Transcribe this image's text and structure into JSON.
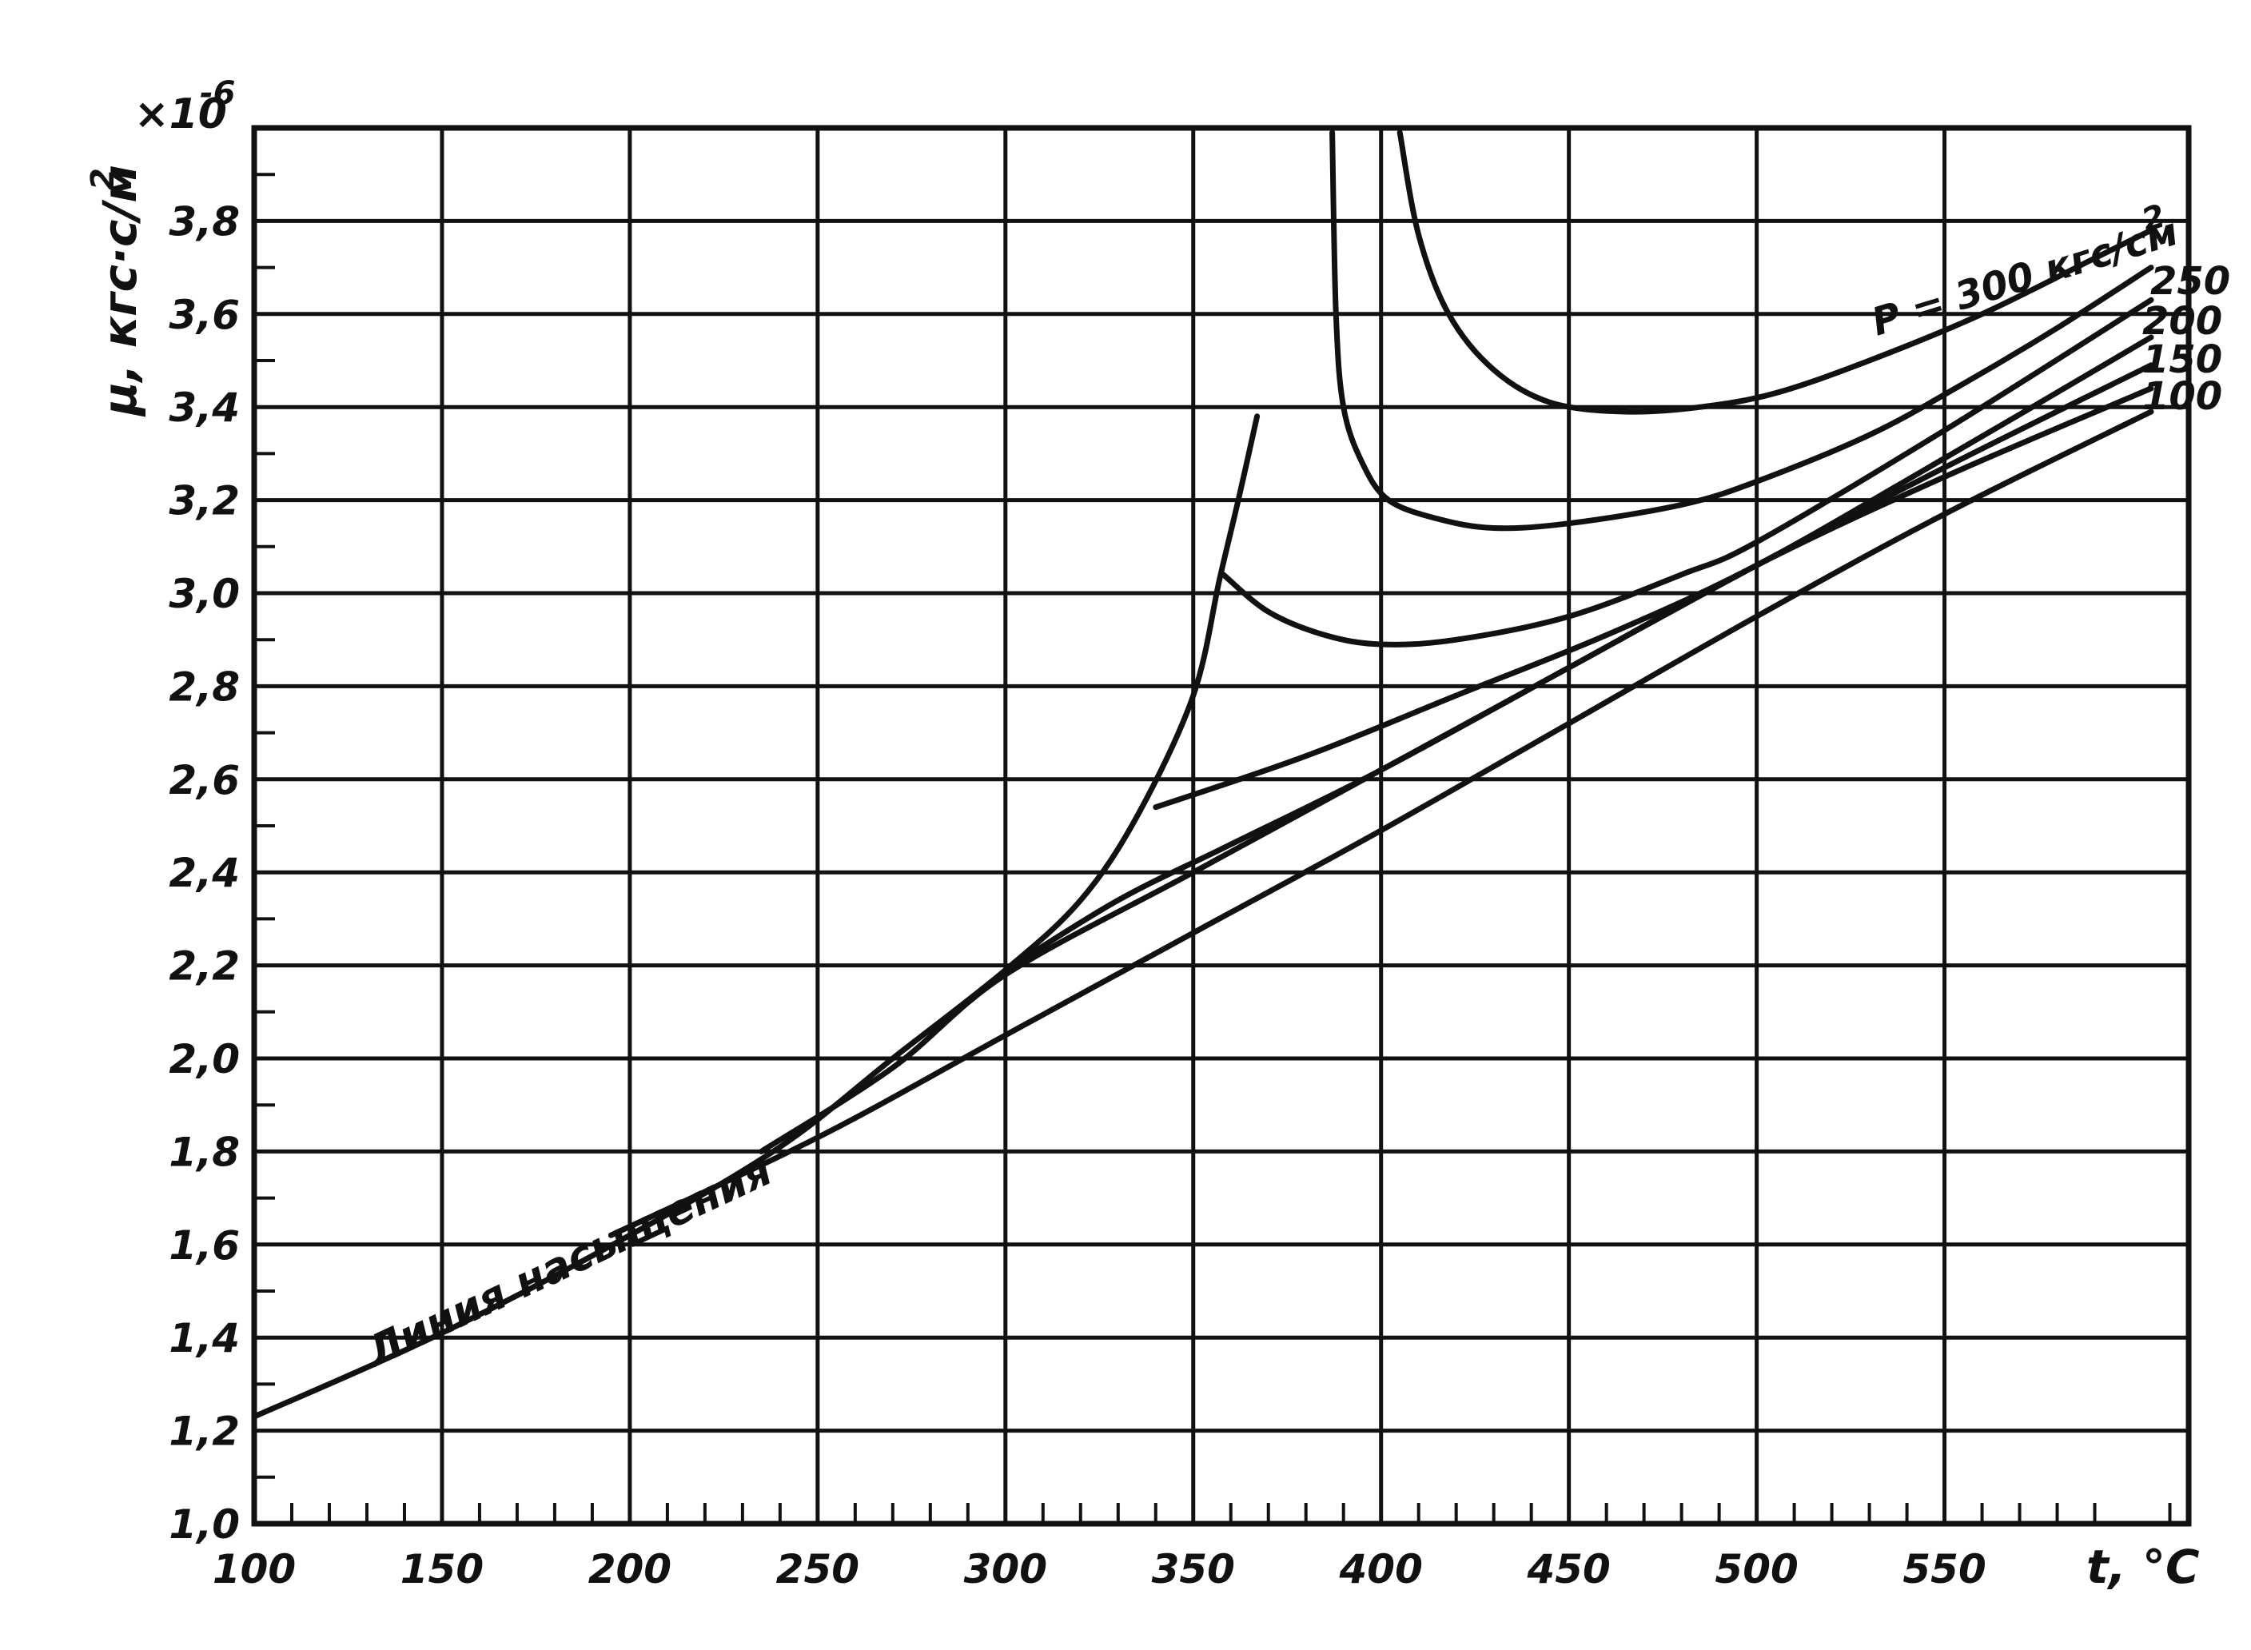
{
  "chart_data": {
    "type": "line",
    "y_multiplier_label": "×10",
    "y_multiplier_exponent": "-6",
    "ylabel": "μ, кгс·с/м",
    "ylabel_sup": "2",
    "xlabel": "t, °C",
    "xlim": [
      100,
      615
    ],
    "ylim": [
      1.0,
      4.0
    ],
    "x_ticks": [
      {
        "value": 100,
        "label": "100"
      },
      {
        "value": 150,
        "label": "150"
      },
      {
        "value": 200,
        "label": "200"
      },
      {
        "value": 250,
        "label": "250"
      },
      {
        "value": 300,
        "label": "300"
      },
      {
        "value": 350,
        "label": "350"
      },
      {
        "value": 400,
        "label": "400"
      },
      {
        "value": 450,
        "label": "450"
      },
      {
        "value": 500,
        "label": "500"
      },
      {
        "value": 550,
        "label": "550"
      }
    ],
    "y_ticks": [
      {
        "value": 1.0,
        "label": "1,0"
      },
      {
        "value": 1.2,
        "label": "1,2"
      },
      {
        "value": 1.4,
        "label": "1,4"
      },
      {
        "value": 1.6,
        "label": "1,6"
      },
      {
        "value": 1.8,
        "label": "1,8"
      },
      {
        "value": 2.0,
        "label": "2,0"
      },
      {
        "value": 2.2,
        "label": "2,2"
      },
      {
        "value": 2.4,
        "label": "2,4"
      },
      {
        "value": 2.6,
        "label": "2,6"
      },
      {
        "value": 2.8,
        "label": "2,8"
      },
      {
        "value": 3.0,
        "label": "3,0"
      },
      {
        "value": 3.2,
        "label": "3,2"
      },
      {
        "value": 3.4,
        "label": "3,4"
      },
      {
        "value": 3.6,
        "label": "3,6"
      },
      {
        "value": 3.8,
        "label": "3,8"
      }
    ],
    "grid": true,
    "saturation_label": "Линия насыщения",
    "saturation_line": {
      "x": [
        100,
        150,
        200,
        240,
        270,
        300,
        320,
        335,
        350,
        357,
        362,
        367
      ],
      "y": [
        1.23,
        1.41,
        1.62,
        1.81,
        2.0,
        2.19,
        2.34,
        2.52,
        2.78,
        3.03,
        3.2,
        3.38
      ]
    },
    "series": [
      {
        "name": "100",
        "x": [
          195,
          250,
          300,
          350,
          400,
          450,
          500,
          550,
          605
        ],
        "y": [
          1.62,
          1.83,
          2.05,
          2.27,
          2.49,
          2.72,
          2.95,
          3.17,
          3.39
        ]
      },
      {
        "name": "150",
        "x": [
          235,
          270,
          300,
          350,
          400,
          450,
          500,
          550,
          605
        ],
        "y": [
          1.8,
          1.98,
          2.18,
          2.4,
          2.62,
          2.84,
          3.06,
          3.25,
          3.44
        ]
      },
      {
        "name": "200",
        "x": [
          300,
          330,
          360,
          400,
          450,
          500,
          550,
          605
        ],
        "y": [
          2.19,
          2.34,
          2.46,
          2.62,
          2.84,
          3.06,
          3.27,
          3.49
        ]
      },
      {
        "name": "250",
        "x": [
          340,
          380,
          420,
          460,
          500,
          550,
          605
        ],
        "y": [
          2.54,
          2.65,
          2.78,
          2.91,
          3.06,
          3.29,
          3.55
        ]
      },
      {
        "name": "P = 300 кгс/см",
        "name_sup": "2",
        "x": [
          358,
          370,
          385,
          400,
          420,
          450,
          480,
          500,
          550,
          605
        ],
        "y": [
          3.04,
          2.96,
          2.91,
          2.89,
          2.9,
          2.95,
          3.04,
          3.11,
          3.35,
          3.63
        ]
      }
    ],
    "extra_series": [
      {
        "x": [
          387,
          388,
          390,
          395,
          402,
          415,
          430,
          450,
          480,
          500,
          530,
          555,
          580,
          605
        ],
        "y": [
          3.99,
          3.6,
          3.4,
          3.28,
          3.2,
          3.16,
          3.14,
          3.15,
          3.19,
          3.24,
          3.34,
          3.45,
          3.57,
          3.7
        ]
      },
      {
        "x": [
          405,
          410,
          418,
          430,
          445,
          465,
          485,
          505,
          530,
          560,
          590,
          605
        ],
        "y": [
          3.99,
          3.77,
          3.6,
          3.48,
          3.41,
          3.39,
          3.4,
          3.43,
          3.5,
          3.6,
          3.72,
          3.78
        ]
      }
    ]
  }
}
